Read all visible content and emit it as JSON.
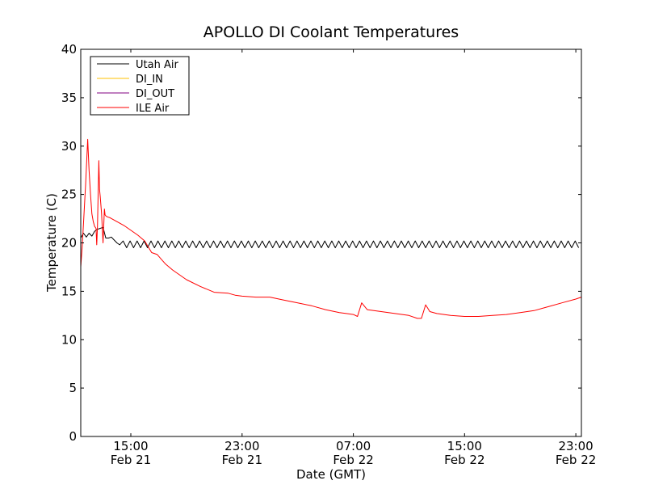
{
  "chart_data": {
    "type": "line",
    "title": "APOLLO DI Coolant Temperatures",
    "xlabel": "Date (GMT)",
    "ylabel": "Temperature (C)",
    "ylim": [
      0,
      40
    ],
    "xlim_hours": [
      11.4,
      47.4
    ],
    "x_unit": "hours since Feb 21 00:00 GMT",
    "grid": false,
    "legend_position": "top-left",
    "yticks": [
      {
        "value": 0,
        "label": "0"
      },
      {
        "value": 5,
        "label": "5"
      },
      {
        "value": 10,
        "label": "10"
      },
      {
        "value": 15,
        "label": "15"
      },
      {
        "value": 20,
        "label": "20"
      },
      {
        "value": 25,
        "label": "25"
      },
      {
        "value": 30,
        "label": "30"
      },
      {
        "value": 35,
        "label": "35"
      },
      {
        "value": 40,
        "label": "40"
      }
    ],
    "xticks": [
      {
        "value": 15,
        "time": "15:00",
        "date": "Feb 21"
      },
      {
        "value": 23,
        "time": "23:00",
        "date": "Feb 21"
      },
      {
        "value": 31,
        "time": "07:00",
        "date": "Feb 22"
      },
      {
        "value": 39,
        "time": "15:00",
        "date": "Feb 22"
      },
      {
        "value": 47,
        "time": "23:00",
        "date": "Feb 22"
      }
    ],
    "series": [
      {
        "name": "Utah Air",
        "color": "#000000",
        "x": [
          11.4,
          11.6,
          11.8,
          12.0,
          12.2,
          12.4,
          12.6,
          12.8,
          13.0,
          13.2,
          13.4,
          13.6,
          13.8,
          14.0,
          14.2
        ],
        "y": [
          20.5,
          21.0,
          20.6,
          21.0,
          20.7,
          21.2,
          21.4,
          21.5,
          21.6,
          20.5,
          20.5,
          20.6,
          20.3,
          20.0,
          19.8
        ],
        "oscillation": {
          "from": 14.2,
          "to": 47.4,
          "period": 0.5,
          "low": 19.5,
          "high": 20.2
        }
      },
      {
        "name": "DI_IN",
        "color": "#ffc000",
        "x": [],
        "y": []
      },
      {
        "name": "DI_OUT",
        "color": "#800080",
        "x": [],
        "y": []
      },
      {
        "name": "ILE Air",
        "color": "#ff0000",
        "x": [
          11.4,
          11.5,
          11.6,
          11.75,
          11.9,
          12.0,
          12.1,
          12.2,
          12.3,
          12.4,
          12.5,
          12.55,
          12.6,
          12.7,
          12.75,
          12.8,
          12.9,
          13.0,
          13.1,
          13.15,
          13.2,
          13.3,
          13.5,
          14.0,
          14.5,
          15.0,
          15.5,
          16.0,
          16.5,
          16.9,
          17.2,
          17.5,
          18.0,
          19.0,
          20.0,
          21.0,
          22.0,
          22.5,
          23.0,
          24.0,
          25.0,
          26.0,
          27.0,
          28.0,
          29.0,
          30.0,
          30.5,
          31.0,
          31.3,
          31.6,
          32.0,
          33.0,
          34.0,
          35.0,
          35.6,
          35.9,
          36.2,
          36.5,
          37.0,
          38.0,
          39.0,
          40.0,
          41.0,
          42.0,
          43.0,
          44.0,
          45.0,
          46.0,
          47.0,
          47.4
        ],
        "y": [
          17.5,
          19.5,
          22.0,
          26.0,
          30.7,
          27.5,
          25.0,
          23.0,
          22.2,
          21.7,
          21.5,
          19.8,
          21.7,
          28.5,
          25.5,
          24.8,
          23.0,
          20.0,
          23.5,
          22.9,
          22.8,
          22.7,
          22.6,
          22.2,
          21.8,
          21.3,
          20.8,
          20.2,
          19.0,
          18.8,
          18.3,
          17.8,
          17.2,
          16.2,
          15.5,
          14.9,
          14.8,
          14.6,
          14.5,
          14.4,
          14.4,
          14.1,
          13.8,
          13.5,
          13.1,
          12.8,
          12.7,
          12.6,
          12.4,
          13.8,
          13.1,
          12.9,
          12.7,
          12.5,
          12.2,
          12.2,
          13.6,
          12.9,
          12.7,
          12.5,
          12.4,
          12.4,
          12.5,
          12.6,
          12.8,
          13.0,
          13.4,
          13.8,
          14.2,
          14.4
        ]
      }
    ]
  }
}
